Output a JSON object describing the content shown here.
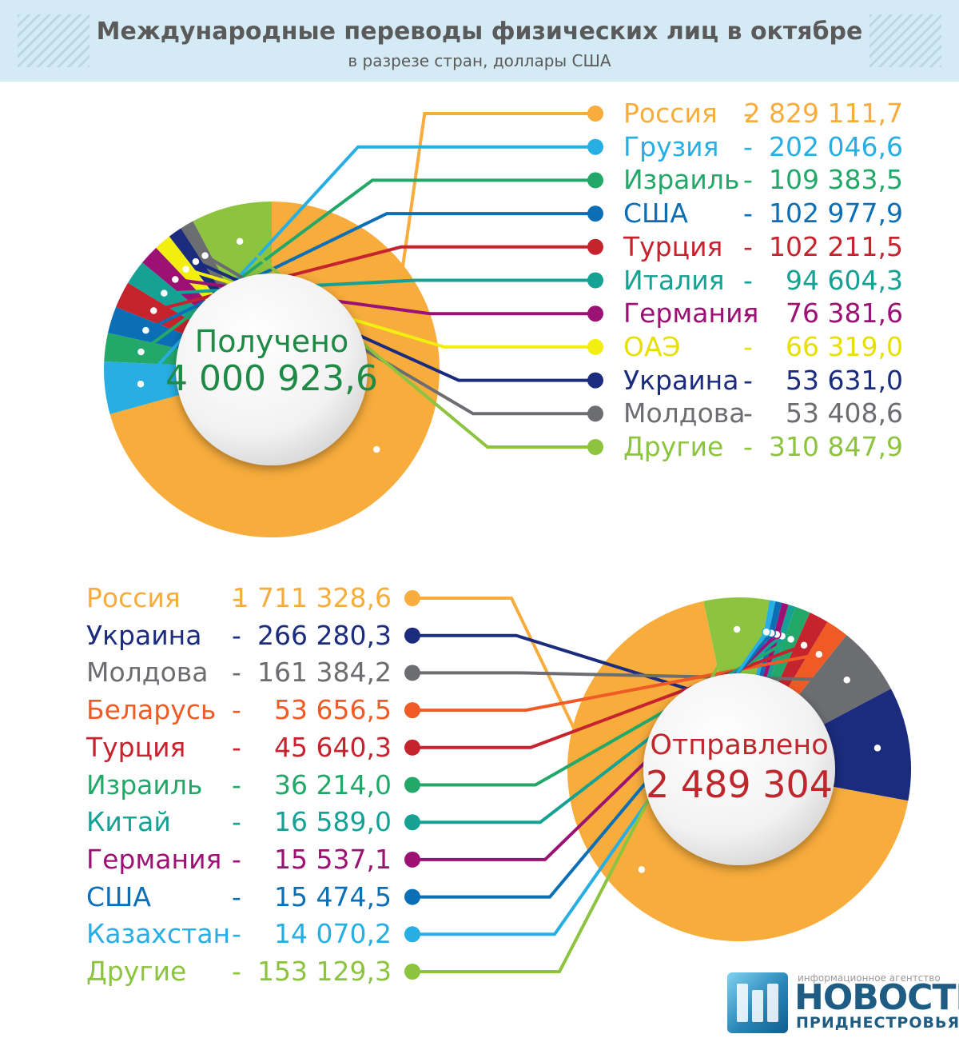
{
  "header": {
    "title": "Международные переводы физических лиц в октябре",
    "subtitle": "в разрезе стран, доллары США"
  },
  "received": {
    "center_title": "Получено",
    "center_total": "4 000 923,6",
    "center_color": "#1f8a45"
  },
  "sent": {
    "center_title": "Отправлено",
    "center_total": "2 489 304",
    "center_color": "#c0272d"
  },
  "logo": {
    "caption": "информационное агентство",
    "name": "НОВОСТИ",
    "sub": "ПРИДНЕСТРОВЬЯ"
  },
  "chart_data": [
    {
      "type": "pie",
      "name": "Получено",
      "total": 4000923.6,
      "legend": "right",
      "categories": [
        "Россия",
        "Грузия",
        "Израиль",
        "США",
        "Турция",
        "Италия",
        "Германия",
        "ОАЭ",
        "Украина",
        "Молдова",
        "Другие"
      ],
      "labels": [
        "2 829 111,7",
        "202 046,6",
        "109 383,5",
        "102 977,9",
        "102 211,5",
        "94 604,3",
        "76 381,6",
        "66 319,0",
        "53 631,0",
        "53 408,6",
        "310 847,9"
      ],
      "values": [
        2829111.7,
        202046.6,
        109383.5,
        102977.9,
        102211.5,
        94604.3,
        76381.6,
        66319.0,
        53631.0,
        53408.6,
        310847.9
      ],
      "colors": [
        "#f7ac3c",
        "#27aee3",
        "#23a86a",
        "#0b6fb5",
        "#c5232d",
        "#16a195",
        "#9c1174",
        "#f2ee10",
        "#1b2b7d",
        "#6c6d70",
        "#8cc43f"
      ]
    },
    {
      "type": "pie",
      "name": "Отправлено",
      "total": 2489304,
      "legend": "left",
      "categories": [
        "Россия",
        "Украина",
        "Молдова",
        "Беларусь",
        "Турция",
        "Израиль",
        "Китай",
        "Германия",
        "США",
        "Казахстан",
        "Другие"
      ],
      "labels": [
        "1 711 328,6",
        "266 280,3",
        "161 384,2",
        "53 656,5",
        "45 640,3",
        "36 214,0",
        "16 589,0",
        "15 537,1",
        "15 474,5",
        "14 070,2",
        "153 129,3"
      ],
      "values": [
        1711328.6,
        266280.3,
        161384.2,
        53656.5,
        45640.3,
        36214.0,
        16589.0,
        15537.1,
        15474.5,
        14070.2,
        153129.3
      ],
      "colors": [
        "#f7ac3c",
        "#1b2b7d",
        "#6c6d70",
        "#f05a24",
        "#c5232d",
        "#23a86a",
        "#16a195",
        "#9c1174",
        "#0b6fb5",
        "#27aee3",
        "#8cc43f"
      ]
    }
  ]
}
